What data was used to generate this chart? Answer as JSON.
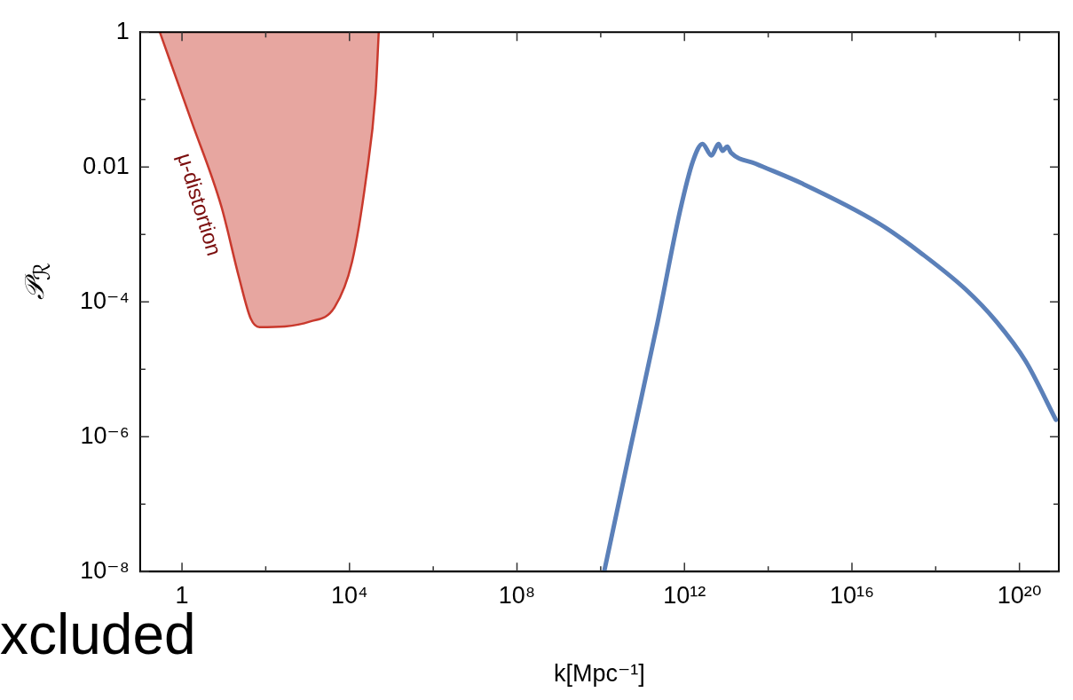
{
  "chart_data": {
    "type": "line",
    "xlabel": "k[Mpc⁻¹]",
    "ylabel": "𝒫$_{ℛ}$",
    "log": "xy",
    "grid": false,
    "legend": false,
    "xlim": [
      0.1,
      8.7e+20
    ],
    "xticks": [
      {
        "value": 1,
        "label": "1"
      },
      {
        "value": 100,
        "label": null
      },
      {
        "value": 10000,
        "label": "10⁴"
      },
      {
        "value": 1000000.0,
        "label": null
      },
      {
        "value": 100000000.0,
        "label": "10⁸"
      },
      {
        "value": 10000000000.0,
        "label": null
      },
      {
        "value": 1000000000000.0,
        "label": "10¹²"
      },
      {
        "value": 100000000000000.0,
        "label": null
      },
      {
        "value": 1e+16,
        "label": "10¹⁶"
      },
      {
        "value": 1e+18,
        "label": null
      },
      {
        "value": 1e+20,
        "label": "10²⁰"
      }
    ],
    "ylim": [
      1e-08,
      1
    ],
    "yticks": [
      {
        "value": 1e-08,
        "label": "10⁻⁸"
      },
      {
        "value": 1e-07,
        "label": null
      },
      {
        "value": 1e-06,
        "label": "10⁻⁶"
      },
      {
        "value": 1e-05,
        "label": null
      },
      {
        "value": 0.0001,
        "label": "10⁻⁴"
      },
      {
        "value": 0.001,
        "label": null
      },
      {
        "value": 0.01,
        "label": "0.01"
      },
      {
        "value": 0.1,
        "label": null
      },
      {
        "value": 1,
        "label": "1"
      }
    ],
    "series": [
      {
        "type": "area",
        "name": "μ-distortion",
        "color": "#c9392d",
        "x": [
          0.295,
          1.7,
          8.7,
          23,
          44,
          71,
          1150,
          4400,
          11500,
          25000,
          42000,
          50000
        ],
        "values": [
          1,
          0.047,
          0.0026,
          0.00023,
          5.6e-05,
          4.2e-05,
          5.1e-05,
          8.3e-05,
          0.00039,
          0.0069,
          0.123,
          1
        ]
      },
      {
        "type": "line",
        "color": "#5b80b9",
        "x": [
          12300000000.0,
          52000000000.0,
          230000000000.0,
          780000000000.0,
          1600000000000.0,
          2700000000000.0,
          4400000000000.0,
          6500000000000.0,
          8100000000000.0,
          10500000000000.0,
          13000000000000.0,
          50000000000000.0,
          680000000000000.0,
          4.2e+16,
          4.8e+17,
          5.5e+18,
          2.8e+19,
          1.4e+20,
          7.4e+20
        ],
        "values": [
          1.05e-08,
          7.1e-07,
          5.1e-05,
          0.0022,
          0.0123,
          0.022,
          0.0148,
          0.022,
          0.0174,
          0.02,
          0.0162,
          0.0112,
          0.0056,
          0.00148,
          0.00051,
          0.000148,
          5.1e-05,
          1.32e-05,
          1.78e-06
        ]
      }
    ],
    "annotations": [
      "xcluded"
    ]
  }
}
